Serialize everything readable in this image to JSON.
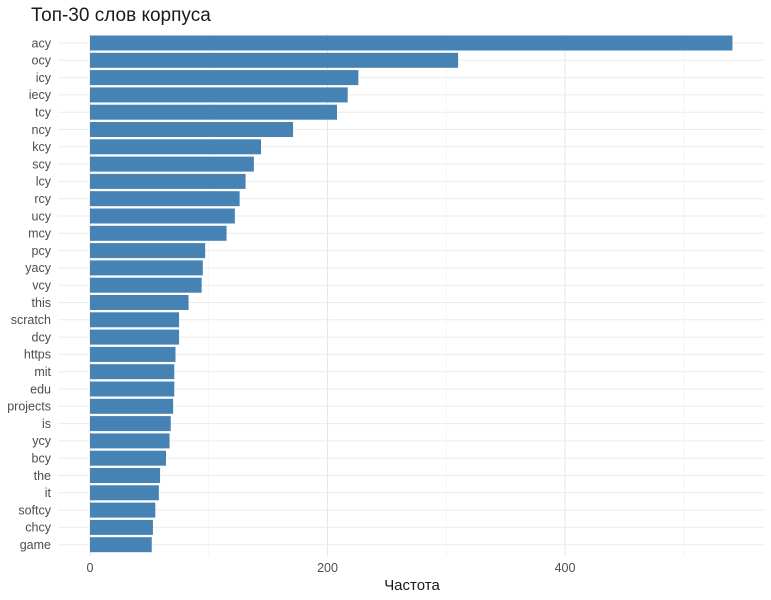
{
  "chart_data": {
    "type": "bar",
    "orientation": "horizontal",
    "title": "Топ-30 слов корпуса",
    "xlabel": "Частота",
    "ylabel": "",
    "xlim": [
      0,
      565
    ],
    "xticks": [
      0,
      200,
      400
    ],
    "grid": true,
    "bar_color": "#4682b4",
    "categories": [
      "acy",
      "ocy",
      "icy",
      "iecy",
      "tcy",
      "ncy",
      "kcy",
      "scy",
      "lcy",
      "rcy",
      "ucy",
      "mcy",
      "pcy",
      "yacy",
      "vcy",
      "this",
      "scratch",
      "dcy",
      "https",
      "mit",
      "edu",
      "projects",
      "is",
      "ycy",
      "bcy",
      "the",
      "it",
      "softcy",
      "chcy",
      "game"
    ],
    "values": [
      541,
      310,
      226,
      217,
      208,
      171,
      144,
      138,
      131,
      126,
      122,
      115,
      97,
      95,
      94,
      83,
      75,
      75,
      72,
      71,
      71,
      70,
      68,
      67,
      64,
      59,
      58,
      55,
      53,
      52
    ]
  }
}
